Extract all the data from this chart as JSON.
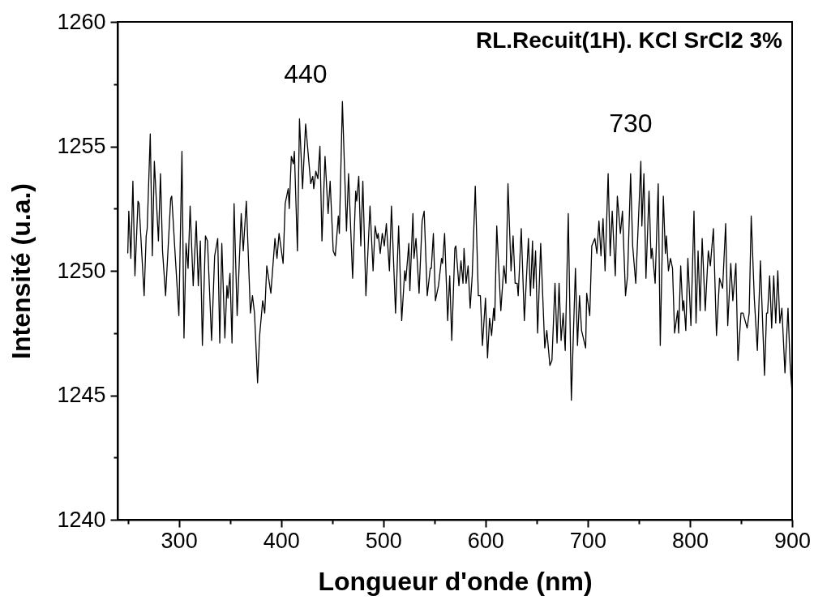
{
  "chart_data": {
    "type": "line",
    "title": "RL.Recuit(1H). KCl SrCl2 3%",
    "xlabel": "Longueur d'onde  (nm)",
    "ylabel": "Intensité  (u.a.)",
    "annotations": [
      {
        "text": "440",
        "x": 424,
        "y": 1255.9
      },
      {
        "text": "730",
        "x": 742,
        "y": 1253.9
      }
    ],
    "x": [
      250,
      251,
      253,
      255,
      257,
      260,
      261,
      266,
      268,
      269,
      272,
      274,
      276,
      280,
      282,
      284,
      287,
      292,
      293,
      296,
      300,
      303,
      305,
      307,
      309,
      311,
      314,
      317,
      319,
      321,
      323,
      326,
      328,
      332,
      335,
      338,
      340,
      342,
      345,
      347,
      348,
      350,
      352,
      354,
      357,
      361,
      363,
      366,
      370,
      372,
      374,
      377,
      379,
      382,
      384,
      386,
      390,
      394,
      396,
      398,
      402,
      404,
      407,
      408,
      410,
      412,
      413,
      416,
      418,
      421,
      424,
      429,
      431,
      432,
      434,
      436,
      438,
      440,
      443,
      446,
      448,
      451,
      453,
      456,
      457,
      460,
      464,
      466,
      470,
      473,
      474,
      476,
      478,
      480,
      483,
      487,
      490,
      492,
      494,
      495,
      497,
      499,
      501,
      503,
      506,
      508,
      512,
      515,
      518,
      521,
      522,
      525,
      526,
      529,
      530,
      532,
      535,
      538,
      540,
      543,
      546,
      547,
      549,
      551,
      554,
      557,
      558,
      560,
      563,
      565,
      567,
      570,
      571,
      574,
      576,
      578,
      579,
      581,
      583,
      585,
      587,
      590,
      593,
      595,
      597,
      600,
      602,
      604,
      606,
      608,
      609,
      611,
      615,
      618,
      620,
      622,
      625,
      627,
      629,
      631,
      632,
      635,
      638,
      642,
      644,
      646,
      647,
      649,
      651,
      654,
      658,
      660,
      663,
      665,
      668,
      670,
      672,
      674,
      676,
      678,
      681,
      684,
      688,
      690,
      692,
      694,
      698,
      699,
      702,
      704,
      707,
      709,
      711,
      713,
      715,
      717,
      720,
      722,
      724,
      727,
      729,
      732,
      734,
      737,
      739,
      742,
      744,
      747,
      749,
      752,
      753,
      755,
      757,
      760,
      762,
      763,
      766,
      769,
      771,
      774,
      776,
      777,
      779,
      781,
      783,
      785,
      788,
      789,
      791,
      793,
      794,
      796,
      798,
      801,
      804,
      806,
      808,
      810,
      812,
      815,
      818,
      820,
      823,
      826,
      829,
      832,
      835,
      837,
      840,
      842,
      845,
      847,
      850,
      852,
      854,
      856,
      858,
      860,
      863,
      866,
      869,
      873,
      875,
      876,
      878,
      880,
      882,
      884,
      886,
      888,
      890,
      893,
      896,
      898,
      900
    ],
    "series": [
      {
        "color": "#000000",
        "values": [
          1250.7,
          1252.4,
          1250.5,
          1253.6,
          1249.8,
          1252.8,
          1252.7,
          1249.0,
          1251.4,
          1251.7,
          1255.5,
          1250.6,
          1254.4,
          1251.2,
          1253.9,
          1250.8,
          1249.0,
          1252.9,
          1253.0,
          1250.9,
          1248.2,
          1254.8,
          1247.3,
          1251.1,
          1250.1,
          1252.6,
          1249.4,
          1252.0,
          1249.4,
          1251.2,
          1247.0,
          1251.4,
          1251.2,
          1247.2,
          1250.6,
          1251.3,
          1247.1,
          1251.1,
          1247.3,
          1249.4,
          1248.9,
          1249.9,
          1247.1,
          1252.7,
          1248.2,
          1252.3,
          1250.8,
          1252.8,
          1248.3,
          1249.0,
          1248.3,
          1245.5,
          1247.4,
          1248.8,
          1248.3,
          1250.2,
          1249.1,
          1251.3,
          1250.5,
          1251.5,
          1250.3,
          1252.7,
          1253.3,
          1252.5,
          1254.6,
          1254.3,
          1254.8,
          1250.8,
          1256.1,
          1253.3,
          1255.9,
          1253.5,
          1253.8,
          1253.3,
          1254.0,
          1253.7,
          1255.0,
          1251.2,
          1254.6,
          1252.3,
          1253.6,
          1250.8,
          1250.6,
          1252.2,
          1251.5,
          1256.8,
          1251.6,
          1253.9,
          1249.7,
          1253.2,
          1252.8,
          1253.8,
          1251.0,
          1253.6,
          1249.0,
          1252.6,
          1250.0,
          1251.8,
          1251.3,
          1251.5,
          1250.7,
          1251.5,
          1251.0,
          1251.9,
          1250.0,
          1252.6,
          1248.3,
          1251.8,
          1248.0,
          1250.0,
          1249.6,
          1251.1,
          1249.2,
          1252.3,
          1250.5,
          1251.3,
          1249.1,
          1252.0,
          1252.4,
          1249.0,
          1250.1,
          1250.1,
          1251.5,
          1248.8,
          1249.4,
          1250.5,
          1250.3,
          1251.5,
          1248.0,
          1249.8,
          1247.2,
          1250.9,
          1251.0,
          1249.4,
          1250.4,
          1249.5,
          1250.9,
          1249.5,
          1250.2,
          1248.5,
          1249.8,
          1253.4,
          1249.0,
          1249.0,
          1247.0,
          1248.9,
          1246.5,
          1248.1,
          1247.4,
          1248.5,
          1248.0,
          1251.8,
          1248.4,
          1250.2,
          1249.5,
          1253.5,
          1250.0,
          1251.4,
          1249.5,
          1249.5,
          1249.0,
          1251.7,
          1248.0,
          1251.3,
          1249.0,
          1251.2,
          1249.3,
          1250.8,
          1247.5,
          1251.1,
          1246.9,
          1247.6,
          1246.2,
          1246.4,
          1249.5,
          1247.1,
          1249.5,
          1247.2,
          1248.3,
          1246.8,
          1252.3,
          1244.8,
          1250.1,
          1247.0,
          1249.0,
          1247.6,
          1246.9,
          1249.1,
          1248.2,
          1251.0,
          1251.3,
          1250.7,
          1252.0,
          1250.6,
          1252.1,
          1250.0,
          1253.9,
          1250.6,
          1252.4,
          1249.8,
          1253.0,
          1251.5,
          1252.4,
          1249.0,
          1249.8,
          1253.9,
          1251.0,
          1249.5,
          1251.4,
          1254.4,
          1251.8,
          1253.9,
          1249.7,
          1253.2,
          1250.5,
          1250.9,
          1249.5,
          1253.5,
          1247.0,
          1253.0,
          1250.7,
          1251.4,
          1250.0,
          1250.5,
          1250.1,
          1247.5,
          1248.4,
          1247.5,
          1250.2,
          1248.4,
          1248.8,
          1247.6,
          1250.5,
          1247.8,
          1252.4,
          1247.9,
          1250.8,
          1248.4,
          1251.3,
          1248.4,
          1250.8,
          1250.2,
          1251.7,
          1247.4,
          1249.7,
          1249.3,
          1251.9,
          1247.8,
          1250.3,
          1248.8,
          1250.3,
          1246.4,
          1248.3,
          1248.3,
          1248.0,
          1247.7,
          1248.3,
          1252.2,
          1248.9,
          1246.8,
          1250.4,
          1245.8,
          1248.3,
          1248.3,
          1249.8,
          1247.7,
          1249.8,
          1247.9,
          1250.0,
          1247.9,
          1248.5,
          1245.9,
          1248.5,
          1246.3,
          1245.1
        ]
      }
    ],
    "xlim": [
      240,
      900
    ],
    "ylim": [
      1240,
      1260
    ],
    "xticks": [
      {
        "value": 250,
        "label": null
      },
      300,
      {
        "value": 350,
        "label": null
      },
      400,
      {
        "value": 450,
        "label": null
      },
      500,
      {
        "value": 550,
        "label": null
      },
      600,
      {
        "value": 650,
        "label": null
      },
      700,
      {
        "value": 750,
        "label": null
      },
      800,
      {
        "value": 850,
        "label": null
      },
      900
    ],
    "yticks": [
      1240,
      {
        "value": 1242.5,
        "label": null
      },
      1245,
      {
        "value": 1247.5,
        "label": null
      },
      1250,
      {
        "value": 1252.5,
        "label": null
      },
      1255,
      {
        "value": 1257.5,
        "label": null
      },
      1260
    ],
    "grid": false,
    "marker": "none",
    "line_style": "solid"
  }
}
